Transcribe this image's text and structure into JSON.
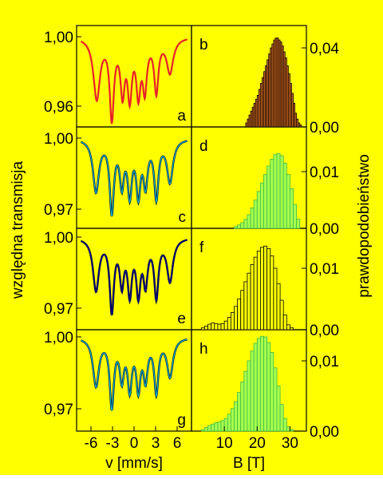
{
  "colors": {
    "background": "#ffff00",
    "spectrum_a": "#e8212b",
    "fit_cyan": "#00c8c8",
    "hist_b_fill": "#d2691e",
    "hist_green_fill": "#a6ff4c",
    "hist_green_edge": "#3cb94a",
    "hist_f_fill": "#ffff00"
  },
  "axes_titles": {
    "left_y": "względna transmisja",
    "right_y": "prawdopodobieństwo",
    "left_x": "v [mm/s]",
    "right_x": "B [T]"
  },
  "chart_data": [
    {
      "type": "line",
      "panel": "a",
      "series_color": "spectrum_a",
      "xlim": [
        -8,
        8
      ],
      "ylim": [
        0.952,
        1.006
      ],
      "yticks": [
        "1,00",
        "0,96"
      ],
      "ytick_values": [
        1.0,
        0.96
      ],
      "dips": [
        [
          -5.2,
          0.035,
          0.55
        ],
        [
          -3.1,
          0.045,
          0.35
        ],
        [
          -1.6,
          0.03,
          0.35
        ],
        [
          -0.6,
          0.032,
          0.35
        ],
        [
          0.6,
          0.03,
          0.35
        ],
        [
          1.5,
          0.028,
          0.35
        ],
        [
          3.1,
          0.03,
          0.35
        ],
        [
          5.0,
          0.02,
          0.55
        ]
      ]
    },
    {
      "type": "bar",
      "panel": "b",
      "fill": "hist_b_fill",
      "edge": "#000000",
      "xlim": [
        0,
        35
      ],
      "ylim": [
        0,
        0.05
      ],
      "yticks": [
        "0,04",
        "0,00"
      ],
      "ytick_values": [
        0.04,
        0.0
      ],
      "x_start": 16,
      "bin_width": 0.5,
      "values": [
        0.0,
        0.002,
        0.004,
        0.006,
        0.008,
        0.01,
        0.012,
        0.014,
        0.016,
        0.019,
        0.022,
        0.025,
        0.028,
        0.031,
        0.034,
        0.037,
        0.04,
        0.042,
        0.044,
        0.045,
        0.045,
        0.044,
        0.043,
        0.041,
        0.038,
        0.035,
        0.031,
        0.027,
        0.022,
        0.017,
        0.012,
        0.007,
        0.004,
        0.002,
        0.001
      ]
    },
    {
      "type": "line",
      "panel": "c",
      "series_color": "fit_cyan",
      "xlim": [
        -8,
        8
      ],
      "ylim": [
        0.9675,
        1.002
      ],
      "yticks": [
        "1,00",
        "0,97"
      ],
      "ytick_values": [
        1.0,
        0.97
      ],
      "dips": [
        [
          -5.3,
          0.022,
          0.5
        ],
        [
          -3.1,
          0.03,
          0.35
        ],
        [
          -1.7,
          0.018,
          0.35
        ],
        [
          -0.6,
          0.022,
          0.35
        ],
        [
          0.6,
          0.022,
          0.35
        ],
        [
          1.6,
          0.018,
          0.35
        ],
        [
          3.1,
          0.024,
          0.35
        ],
        [
          5.0,
          0.018,
          0.5
        ]
      ]
    },
    {
      "type": "bar",
      "panel": "d",
      "fill": "hist_green_fill",
      "edge": "hist_green_edge",
      "xlim": [
        0,
        35
      ],
      "ylim": [
        0,
        0.0145
      ],
      "yticks": [
        "0,01",
        "0,00"
      ],
      "ytick_values": [
        0.01,
        0.0
      ],
      "x_start": 13,
      "bin_width": 1,
      "values": [
        0.0003,
        0.0006,
        0.001,
        0.0016,
        0.0024,
        0.0036,
        0.005,
        0.0065,
        0.008,
        0.0095,
        0.011,
        0.0122,
        0.013,
        0.0132,
        0.0128,
        0.0115,
        0.0095,
        0.007,
        0.0042,
        0.0016
      ]
    },
    {
      "type": "line",
      "panel": "e",
      "series_color": "#000080",
      "xlim": [
        -8,
        8
      ],
      "ylim": [
        0.9675,
        1.002
      ],
      "yticks": [
        "1,00",
        "0,97"
      ],
      "ytick_values": [
        1.0,
        0.97
      ],
      "dips": [
        [
          -5.3,
          0.022,
          0.5
        ],
        [
          -3.1,
          0.03,
          0.35
        ],
        [
          -1.7,
          0.018,
          0.35
        ],
        [
          -0.6,
          0.022,
          0.35
        ],
        [
          0.6,
          0.022,
          0.35
        ],
        [
          1.6,
          0.018,
          0.35
        ],
        [
          3.1,
          0.024,
          0.35
        ],
        [
          5.0,
          0.018,
          0.5
        ]
      ]
    },
    {
      "type": "bar",
      "panel": "f",
      "fill": "hist_f_fill",
      "edge": "#000000",
      "xlim": [
        0,
        35
      ],
      "ylim": [
        0,
        0.0145
      ],
      "yticks": [
        "0,01",
        "0,00"
      ],
      "ytick_values": [
        0.01,
        0.0
      ],
      "x_start": 3,
      "bin_width": 1,
      "values": [
        0.0003,
        0.0006,
        0.0009,
        0.0011,
        0.001,
        0.0009,
        0.001,
        0.0014,
        0.002,
        0.0028,
        0.0038,
        0.005,
        0.0064,
        0.0078,
        0.0092,
        0.0106,
        0.0118,
        0.0128,
        0.0134,
        0.0136,
        0.0132,
        0.012,
        0.01,
        0.0075,
        0.0048,
        0.0024,
        0.0008,
        0.0003
      ]
    },
    {
      "type": "line",
      "panel": "g",
      "series_color": "fit_cyan",
      "xlim": [
        -8,
        8
      ],
      "ylim": [
        0.9675,
        1.002
      ],
      "yticks": [
        "1,00",
        "0,97"
      ],
      "ytick_values": [
        1.0,
        0.97
      ],
      "dips": [
        [
          -5.3,
          0.02,
          0.5
        ],
        [
          -3.1,
          0.028,
          0.35
        ],
        [
          -1.7,
          0.016,
          0.35
        ],
        [
          -0.6,
          0.02,
          0.35
        ],
        [
          0.6,
          0.02,
          0.35
        ],
        [
          1.6,
          0.016,
          0.35
        ],
        [
          3.1,
          0.022,
          0.35
        ],
        [
          5.0,
          0.016,
          0.5
        ]
      ]
    },
    {
      "type": "bar",
      "panel": "h",
      "fill": "hist_green_fill",
      "edge": "hist_green_edge",
      "xlim": [
        0,
        35
      ],
      "ylim": [
        0,
        0.0145
      ],
      "yticks": [
        "0,01",
        "0,00"
      ],
      "ytick_values": [
        0.01,
        0.0
      ],
      "x_start": 3,
      "bin_width": 1,
      "values": [
        0.0002,
        0.0005,
        0.0008,
        0.001,
        0.0012,
        0.0013,
        0.0015,
        0.0018,
        0.0024,
        0.0032,
        0.0042,
        0.0055,
        0.007,
        0.0085,
        0.01,
        0.0114,
        0.0125,
        0.0132,
        0.0135,
        0.0134,
        0.0126,
        0.0112,
        0.009,
        0.0064,
        0.0038,
        0.0018,
        0.0006,
        0.0002
      ]
    }
  ],
  "bottom_axes": {
    "v_ticks": [
      "-6",
      "-3",
      "0",
      "3",
      "6"
    ],
    "v_values": [
      -6,
      -3,
      0,
      3,
      6
    ],
    "b_ticks": [
      "10",
      "20",
      "30"
    ],
    "b_values": [
      10,
      20,
      30
    ]
  }
}
